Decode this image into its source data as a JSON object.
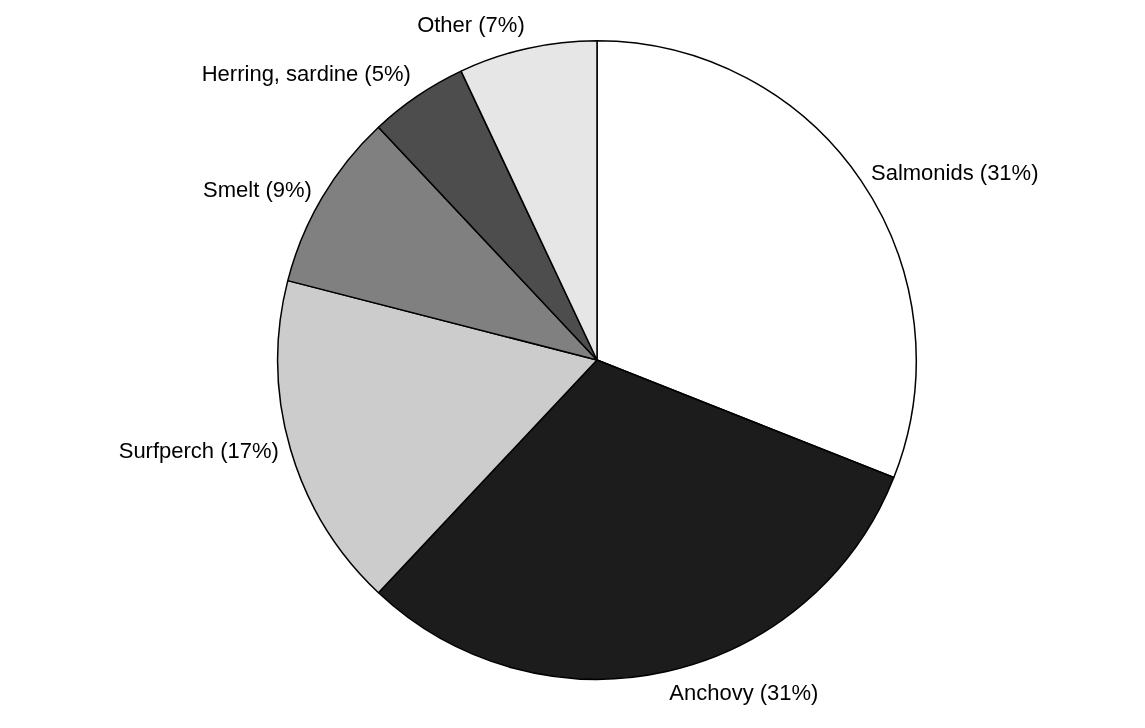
{
  "chart_data": {
    "type": "pie",
    "categories": [
      "Salmonids",
      "Anchovy",
      "Surfperch",
      "Smelt",
      "Herring, sardine",
      "Other"
    ],
    "values": [
      31,
      31,
      17,
      9,
      5,
      7
    ],
    "colors": [
      "#ffffff",
      "#1c1c1c",
      "#cccccc",
      "#808080",
      "#4d4d4d",
      "#e6e6e6"
    ],
    "value_labels": [
      "(31%)",
      "(31%)",
      "(17%)",
      "(9%)",
      "(5%)",
      "(7%)"
    ]
  }
}
